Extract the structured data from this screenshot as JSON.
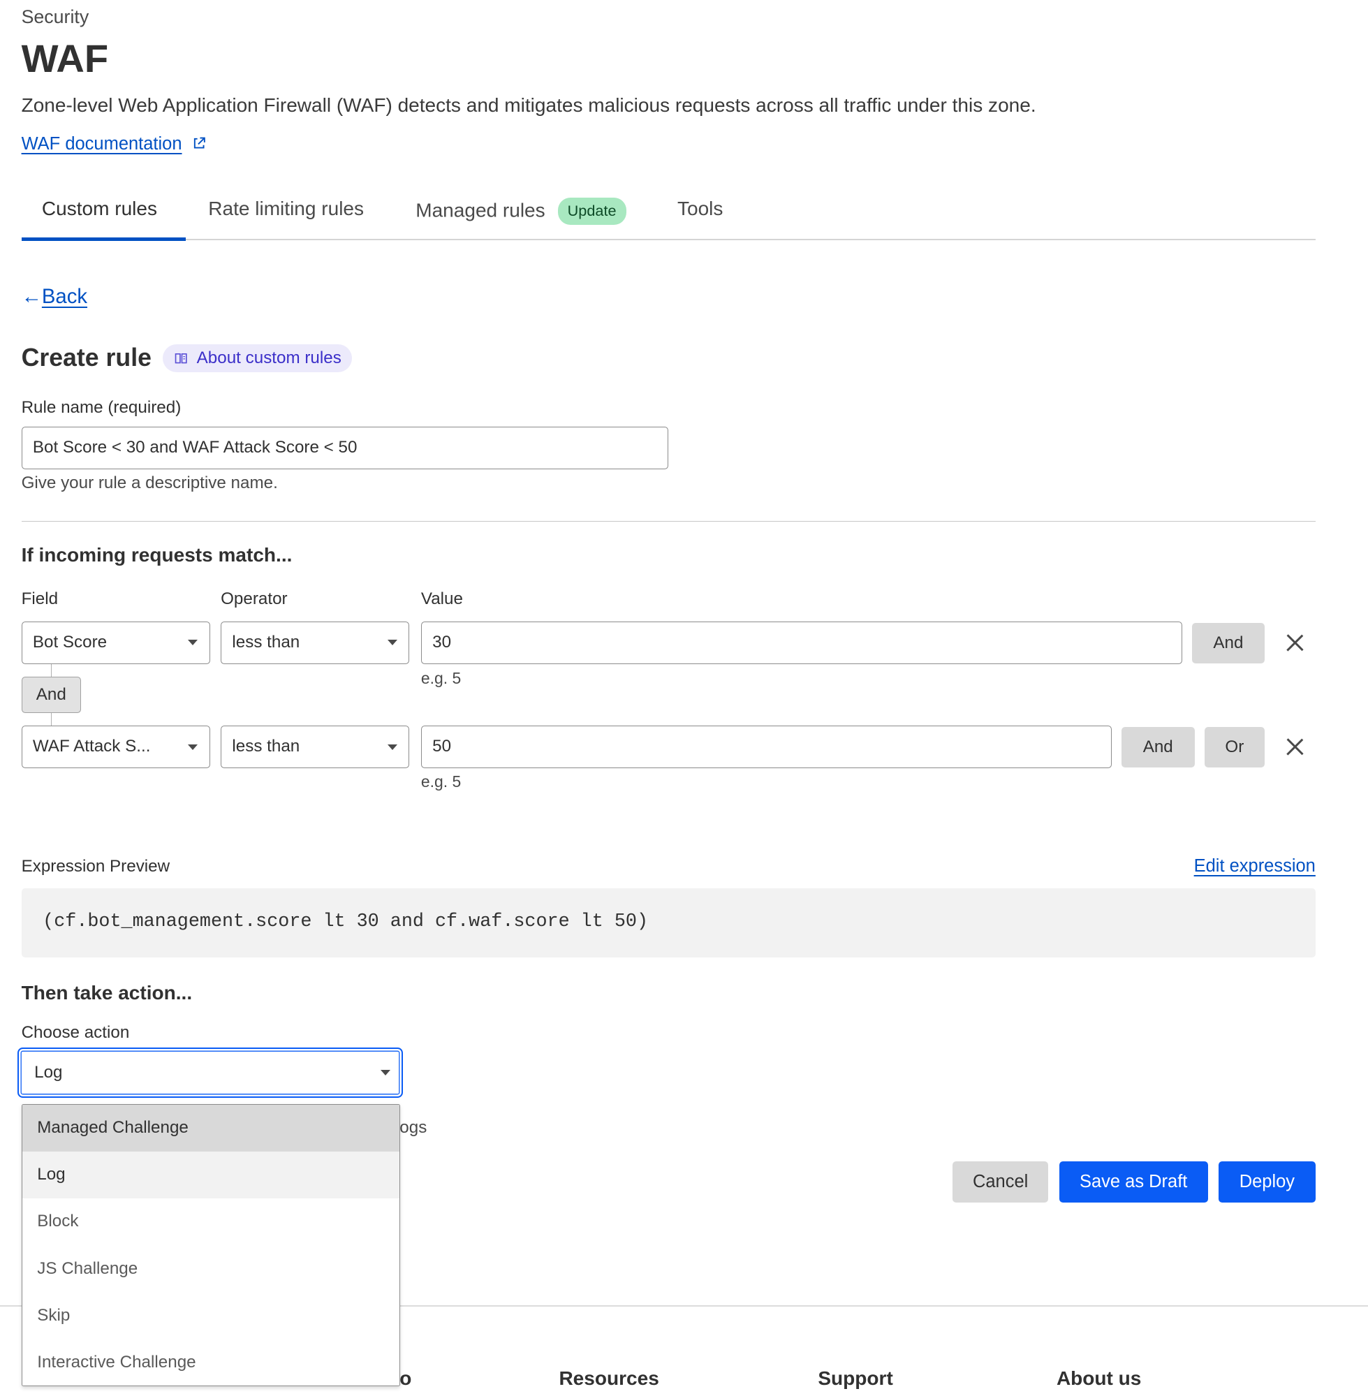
{
  "header": {
    "breadcrumb": "Security",
    "title": "WAF",
    "description": "Zone-level Web Application Firewall (WAF) detects and mitigates malicious requests across all traffic under this zone.",
    "doc_link": "WAF documentation",
    "doc_link_icon": "external-link-icon"
  },
  "tabs": [
    {
      "label": "Custom rules",
      "active": true
    },
    {
      "label": "Rate limiting rules"
    },
    {
      "label": "Managed rules",
      "badge": "Update"
    },
    {
      "label": "Tools"
    }
  ],
  "back_label": "Back",
  "form": {
    "title": "Create rule",
    "about_chip": "About custom rules",
    "rule_name_label": "Rule name (required)",
    "rule_name_value": "Bot Score < 30 and WAF Attack Score < 50",
    "rule_name_hint": "Give your rule a descriptive name.",
    "match_heading": "If incoming requests match...",
    "col_field": "Field",
    "col_operator": "Operator",
    "col_value": "Value",
    "connector": "And",
    "conditions": [
      {
        "field": "Bot Score",
        "operator": "less than",
        "value": "30",
        "hint": "e.g. 5",
        "buttons": [
          "And"
        ]
      },
      {
        "field": "WAF Attack S...",
        "operator": "less than",
        "value": "50",
        "hint": "e.g. 5",
        "buttons": [
          "And",
          "Or"
        ]
      }
    ],
    "expression_label": "Expression Preview",
    "edit_expression": "Edit expression",
    "expression": "(cf.bot_management.score lt 30 and cf.waf.score lt 50)",
    "action_heading": "Then take action...",
    "choose_action_label": "Choose action",
    "action_value": "Log",
    "action_options": [
      "Managed Challenge",
      "Log",
      "Block",
      "JS Challenge",
      "Skip",
      "Interactive Challenge"
    ],
    "partially_hidden_text": "ogs",
    "cancel": "Cancel",
    "save_draft": "Save as Draft",
    "deploy": "Deploy"
  },
  "footer": {
    "headings": [
      "o",
      "Resources",
      "Support",
      "About us"
    ]
  },
  "colors": {
    "link": "#0051c3",
    "primary_button": "#0a5cf5",
    "badge_bg": "#a8e8c0",
    "chip_bg": "#eceafb"
  }
}
